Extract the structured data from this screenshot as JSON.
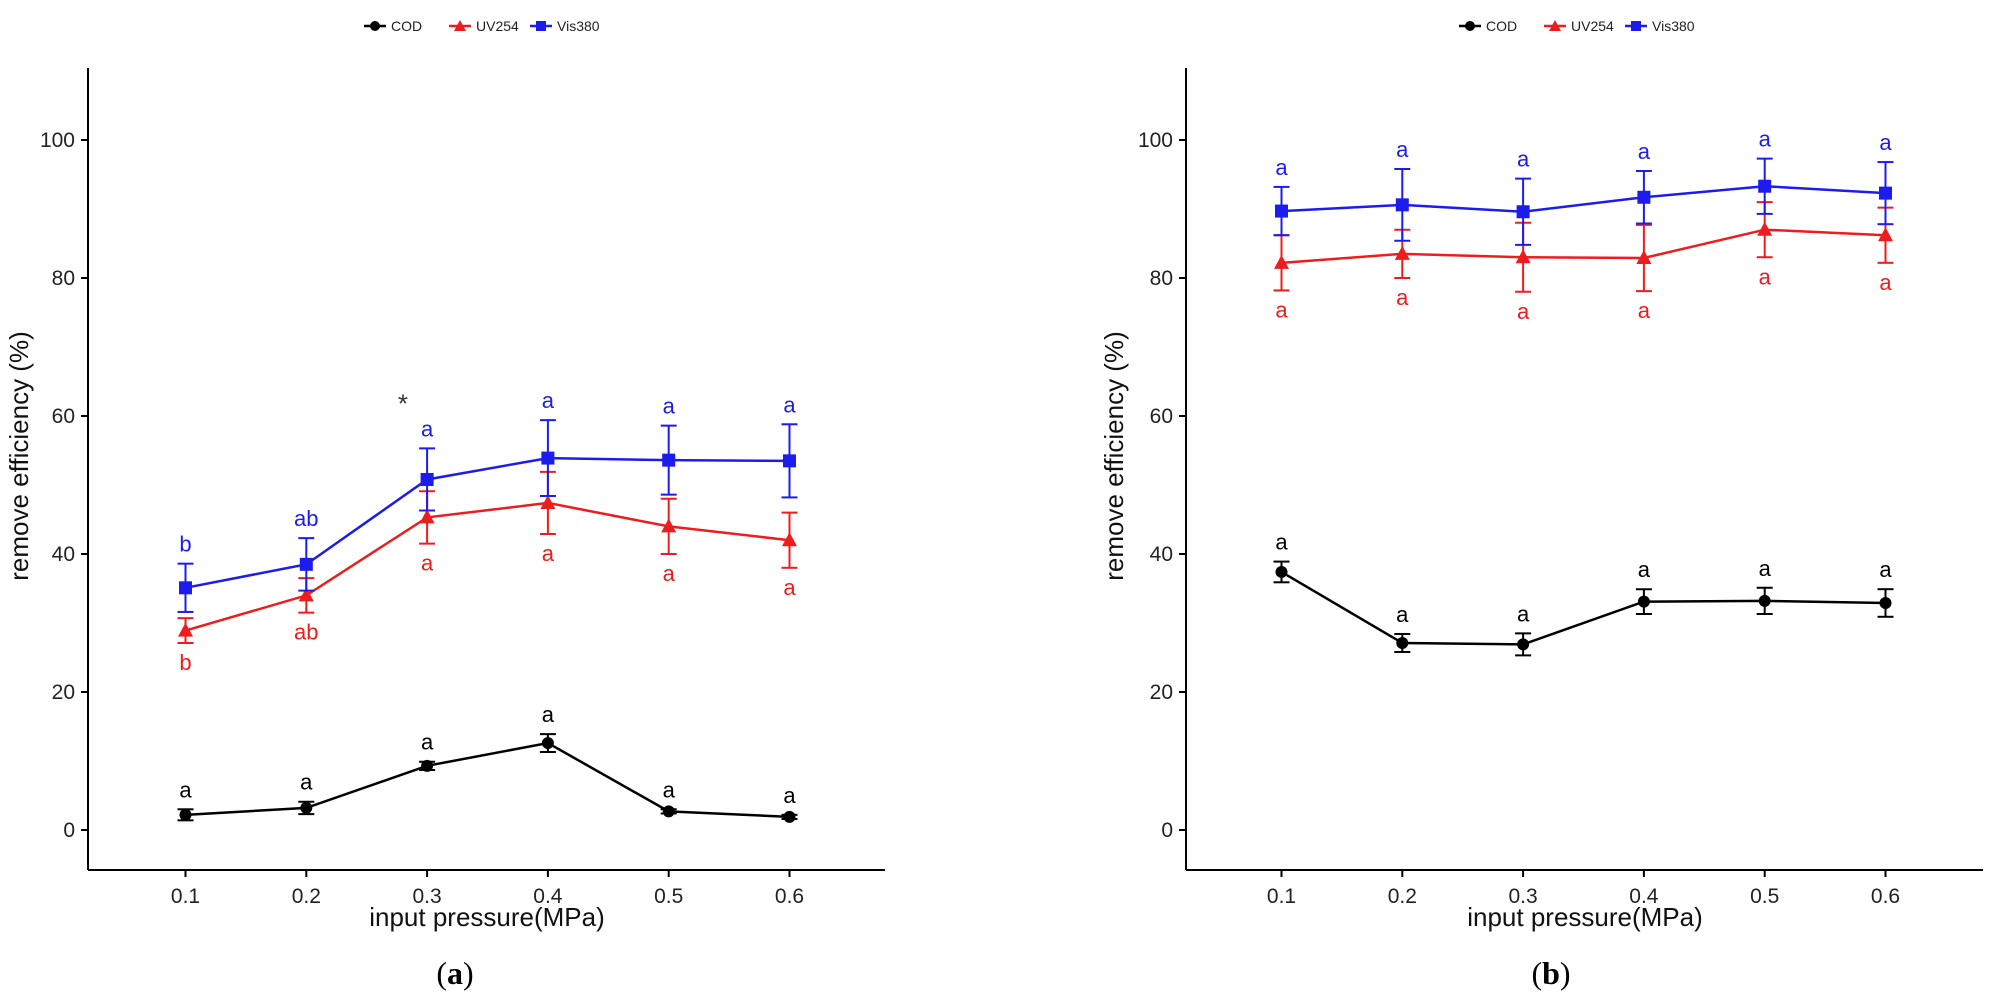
{
  "colors": {
    "COD": "#000000",
    "UV254": "#ee1c1c",
    "Vis380": "#1c1cee",
    "axis": "#000000",
    "background": "#ffffff"
  },
  "chart_data": [
    {
      "type": "line",
      "panel_label": "a",
      "legend": [
        "COD",
        "UV254",
        "Vis380"
      ],
      "legend_position": "top",
      "xlabel": "input pressure(MPa)",
      "ylabel": "remove efficiency (%)",
      "x": [
        0.1,
        0.2,
        0.3,
        0.4,
        0.5,
        0.6
      ],
      "x_tick_labels": [
        "0.1",
        "0.2",
        "0.3",
        "0.4",
        "0.5",
        "0.6"
      ],
      "y_ticks": [
        0,
        20,
        40,
        60,
        80,
        100
      ],
      "y_tick_labels": [
        "0",
        "20",
        "40",
        "60",
        "80",
        "100"
      ],
      "xlim": [
        0.0,
        0.68
      ],
      "ylim": [
        -5,
        110
      ],
      "grid": false,
      "series": [
        {
          "name": "COD",
          "marker": "circle",
          "values": [
            2.2,
            3.2,
            9.3,
            12.6,
            2.7,
            1.9
          ],
          "errors": [
            0.8,
            0.9,
            0.6,
            1.3,
            0.3,
            0.3
          ],
          "labels": [
            "a",
            "a",
            "a",
            "a",
            "a",
            "a"
          ],
          "label_position": "above"
        },
        {
          "name": "UV254",
          "marker": "triangle",
          "values": [
            28.9,
            34.0,
            45.3,
            47.4,
            44.0,
            42.0
          ],
          "errors": [
            1.8,
            2.5,
            3.8,
            4.5,
            4.0,
            4.0
          ],
          "labels": [
            "b",
            "ab",
            "a",
            "a",
            "a",
            "a"
          ],
          "label_position": "below"
        },
        {
          "name": "Vis380",
          "marker": "square",
          "values": [
            35.1,
            38.5,
            50.8,
            53.9,
            53.6,
            53.5
          ],
          "errors": [
            3.5,
            3.8,
            4.5,
            5.5,
            5.0,
            5.3
          ],
          "labels": [
            "b",
            "ab",
            "a",
            "a",
            "a",
            "a"
          ],
          "label_position": "above"
        }
      ],
      "annotations": [
        {
          "text": "*",
          "x": 0.28,
          "y": 60.5
        }
      ]
    },
    {
      "type": "line",
      "panel_label": "b",
      "legend": [
        "COD",
        "UV254",
        "Vis380"
      ],
      "legend_position": "top",
      "xlabel": "input pressure(MPa)",
      "ylabel": "remove efficiency (%)",
      "x": [
        0.1,
        0.2,
        0.3,
        0.4,
        0.5,
        0.6
      ],
      "x_tick_labels": [
        "0.1",
        "0.2",
        "0.3",
        "0.4",
        "0.5",
        "0.6"
      ],
      "y_ticks": [
        0,
        20,
        40,
        60,
        80,
        100
      ],
      "y_tick_labels": [
        "0",
        "20",
        "40",
        "60",
        "80",
        "100"
      ],
      "xlim": [
        0.0,
        0.68
      ],
      "ylim": [
        -5,
        110
      ],
      "grid": false,
      "series": [
        {
          "name": "COD",
          "marker": "circle",
          "values": [
            37.4,
            27.1,
            26.9,
            33.1,
            33.2,
            32.9
          ],
          "errors": [
            1.5,
            1.3,
            1.6,
            1.8,
            1.9,
            2.0
          ],
          "labels": [
            "a",
            "a",
            "a",
            "a",
            "a",
            "a"
          ],
          "label_position": "above"
        },
        {
          "name": "UV254",
          "marker": "triangle",
          "values": [
            82.2,
            83.5,
            83.0,
            82.9,
            87.0,
            86.2
          ],
          "errors": [
            4.0,
            3.5,
            5.0,
            4.8,
            4.0,
            4.0
          ],
          "labels": [
            "a",
            "a",
            "a",
            "a",
            "a",
            "a"
          ],
          "label_position": "below"
        },
        {
          "name": "Vis380",
          "marker": "square",
          "values": [
            89.7,
            90.6,
            89.6,
            91.7,
            93.3,
            92.3
          ],
          "errors": [
            3.5,
            5.2,
            4.8,
            3.8,
            4.0,
            4.5
          ],
          "labels": [
            "a",
            "a",
            "a",
            "a",
            "a",
            "a"
          ],
          "label_position": "above"
        }
      ],
      "annotations": []
    }
  ]
}
